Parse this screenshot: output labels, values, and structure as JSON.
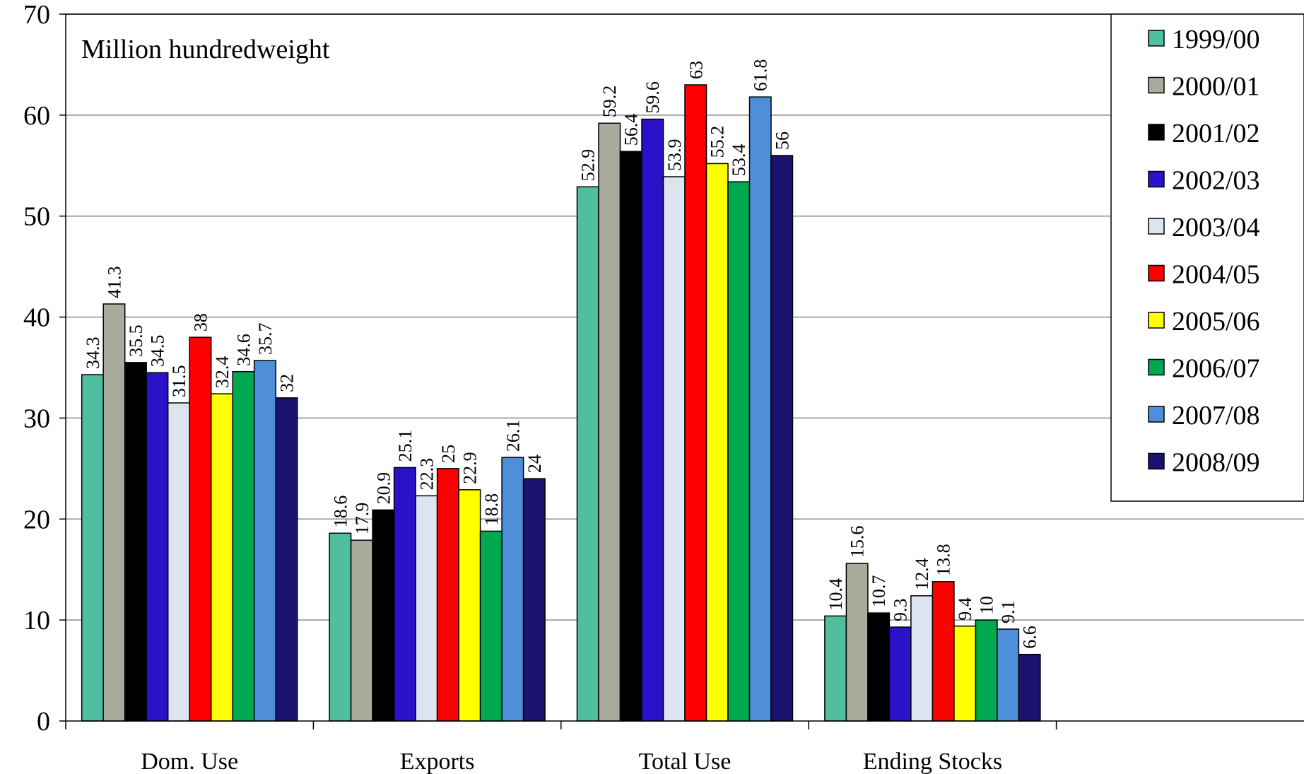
{
  "chart_data": {
    "type": "bar",
    "ylabel": "Million hundredweight",
    "ylim": [
      0,
      70
    ],
    "yticks": [
      "0",
      "10",
      "20",
      "30",
      "40",
      "50",
      "60",
      "70"
    ],
    "grid": true,
    "legend_position": "top-right",
    "categories": [
      "Dom. Use",
      "Exports",
      "Total Use",
      "Ending Stocks"
    ],
    "series": [
      {
        "name": "1999/00",
        "color": "#4fbf9f",
        "values": [
          34.3,
          18.6,
          52.9,
          10.4
        ],
        "labels": [
          "34.3",
          "18.6",
          "52.9",
          "10.4"
        ]
      },
      {
        "name": "2000/01",
        "color": "#a9ac9c",
        "values": [
          41.3,
          17.9,
          59.2,
          15.6
        ],
        "labels": [
          "41.3",
          "17.9",
          "59.2",
          "15.6"
        ]
      },
      {
        "name": "2001/02",
        "color": "#000000",
        "values": [
          35.5,
          20.9,
          56.4,
          10.7
        ],
        "labels": [
          "35.5",
          "20.9",
          "56.4",
          "10.7"
        ]
      },
      {
        "name": "2002/03",
        "color": "#2a12c8",
        "values": [
          34.5,
          25.1,
          59.6,
          9.3
        ],
        "labels": [
          "34.5",
          "25.1",
          "59.6",
          "9.3"
        ]
      },
      {
        "name": "2003/04",
        "color": "#dbe4ef",
        "values": [
          31.5,
          22.3,
          53.9,
          12.4
        ],
        "labels": [
          "31.5",
          "22.3",
          "53.9",
          "12.4"
        ]
      },
      {
        "name": "2004/05",
        "color": "#ff0000",
        "values": [
          38,
          25,
          63,
          13.8
        ],
        "labels": [
          "38",
          "25",
          "63",
          "13.8"
        ]
      },
      {
        "name": "2005/06",
        "color": "#ffff00",
        "values": [
          32.4,
          22.9,
          55.2,
          9.4
        ],
        "labels": [
          "32.4",
          "22.9",
          "55.2",
          "9.4"
        ]
      },
      {
        "name": "2006/07",
        "color": "#00a84f",
        "values": [
          34.6,
          18.8,
          53.4,
          10
        ],
        "labels": [
          "34.6",
          "18.8",
          "53.4",
          "10"
        ]
      },
      {
        "name": "2007/08",
        "color": "#4f8ed8",
        "values": [
          35.7,
          26.1,
          61.8,
          9.1
        ],
        "labels": [
          "35.7",
          "26.1",
          "61.8",
          "9.1"
        ]
      },
      {
        "name": "2008/09",
        "color": "#1b1270",
        "values": [
          32,
          24,
          56,
          6.6
        ],
        "labels": [
          "32",
          "24",
          "56",
          "6.6"
        ]
      }
    ]
  }
}
